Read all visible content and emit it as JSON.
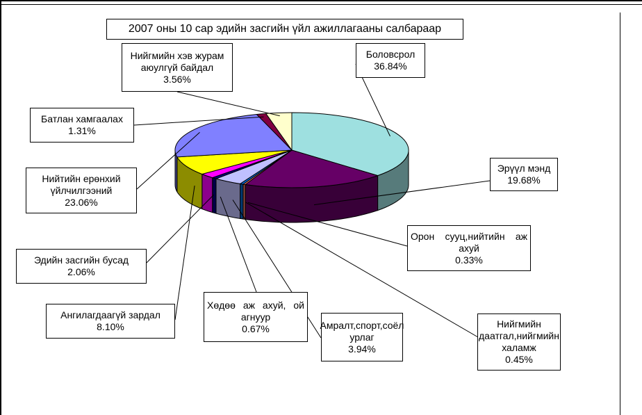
{
  "chart_data": {
    "type": "pie",
    "title": "2007 оны 10 сар эдийн засгийн үйл ажиллагааны салбараар",
    "slices": [
      {
        "name_lines": [
          "Боловсрол"
        ],
        "value_label": "36.84%",
        "value": 36.84,
        "color": "#9ee0e0"
      },
      {
        "name_lines": [
          "Эрүүл мэнд"
        ],
        "value_label": "19.68%",
        "value": 19.68,
        "color": "#660066"
      },
      {
        "name_lines": [
          "Орон сууц,нийтийн аж",
          "ахуй"
        ],
        "value_label": "0.33%",
        "value": 0.33,
        "color": "#ff8066"
      },
      {
        "name_lines": [
          "Нийгмийн",
          "даатгал,нийгмийн",
          "халамж"
        ],
        "value_label": "0.45%",
        "value": 0.45,
        "color": "#0066cc"
      },
      {
        "name_lines": [
          "Амралт,спорт,соёл",
          "урлаг"
        ],
        "value_label": "3.94%",
        "value": 3.94,
        "color": "#c0c0ff"
      },
      {
        "name_lines": [
          "Хөдөө аж ахуй, ой",
          "агнуур"
        ],
        "value_label": "0.67%",
        "value": 0.67,
        "color": "#000080"
      },
      {
        "name_lines": [
          "Эдийн засгийн бусад"
        ],
        "value_label": "2.06%",
        "value": 2.06,
        "color": "#ff00ff"
      },
      {
        "name_lines": [
          "Ангилагдаагүй зардал"
        ],
        "value_label": "8.10%",
        "value": 8.1,
        "color": "#ffff00"
      },
      {
        "name_lines": [
          "Нийтийн ерөнхий",
          "үйлчилгээний"
        ],
        "value_label": "23.06%",
        "value": 23.06,
        "color": "#8080ff"
      },
      {
        "name_lines": [
          "Батлан хамгаалах"
        ],
        "value_label": "1.31%",
        "value": 1.31,
        "color": "#800040"
      },
      {
        "name_lines": [
          "Нийгмийн хэв журам",
          "аюулгүй байдал"
        ],
        "value_label": "3.56%",
        "value": 3.56,
        "color": "#ffffcc"
      }
    ],
    "legend": "none",
    "start": "top, clockwise"
  }
}
